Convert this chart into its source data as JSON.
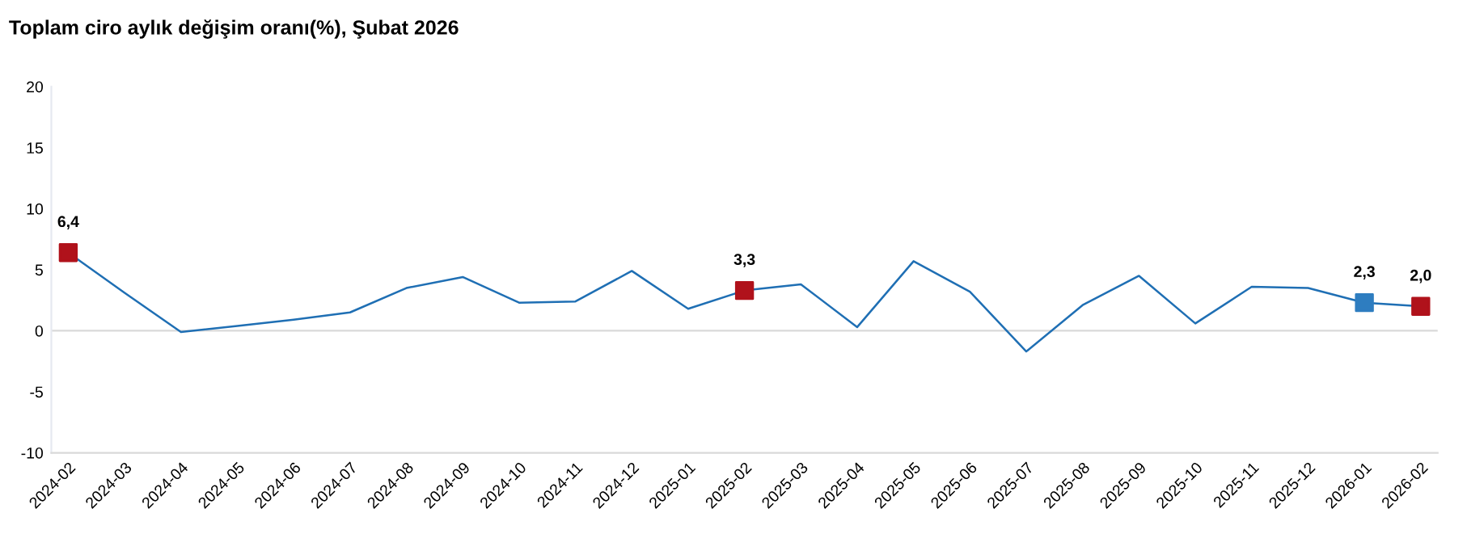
{
  "chart_data": {
    "type": "line",
    "title": "Toplam ciro aylık değişim oranı(%), Şubat 2026",
    "categories": [
      "2024-02",
      "2024-03",
      "2024-04",
      "2024-05",
      "2024-06",
      "2024-07",
      "2024-08",
      "2024-09",
      "2024-10",
      "2024-11",
      "2024-12",
      "2025-01",
      "2025-02",
      "2025-03",
      "2025-04",
      "2025-05",
      "2025-06",
      "2025-07",
      "2025-08",
      "2025-09",
      "2025-10",
      "2025-11",
      "2025-12",
      "2026-01",
      "2026-02"
    ],
    "series": [
      {
        "color": "#1f6fb4",
        "marker": "none",
        "values": [
          6.4,
          3.1,
          -0.1,
          0.4,
          0.9,
          1.5,
          3.5,
          4.4,
          2.3,
          2.4,
          4.9,
          1.8,
          3.3,
          3.8,
          0.3,
          5.7,
          3.2,
          -1.7,
          2.1,
          4.5,
          0.6,
          3.6,
          3.5,
          2.3,
          2.0
        ]
      },
      {
        "type": "scatter",
        "marker": "square",
        "colors": [
          "#b0121b",
          null,
          null,
          null,
          null,
          null,
          null,
          null,
          null,
          null,
          null,
          null,
          "#b0121b",
          null,
          null,
          null,
          null,
          null,
          null,
          null,
          null,
          null,
          null,
          "#2e7dc0",
          "#b0121b"
        ],
        "values": [
          6.4,
          null,
          null,
          null,
          null,
          null,
          null,
          null,
          null,
          null,
          null,
          null,
          3.3,
          null,
          null,
          null,
          null,
          null,
          null,
          null,
          null,
          null,
          null,
          2.3,
          2.0
        ],
        "value_labels": [
          "6,4",
          null,
          null,
          null,
          null,
          null,
          null,
          null,
          null,
          null,
          null,
          null,
          "3,3",
          null,
          null,
          null,
          null,
          null,
          null,
          null,
          null,
          null,
          null,
          "2,3",
          "2,0"
        ]
      }
    ],
    "ylim": [
      -10,
      20
    ],
    "yticks": [
      -10,
      -5,
      0,
      5,
      10,
      15,
      20
    ],
    "grid": false,
    "ref_lines": [
      {
        "axis": "y",
        "value": 0,
        "color": "#d9d9d9"
      }
    ]
  }
}
